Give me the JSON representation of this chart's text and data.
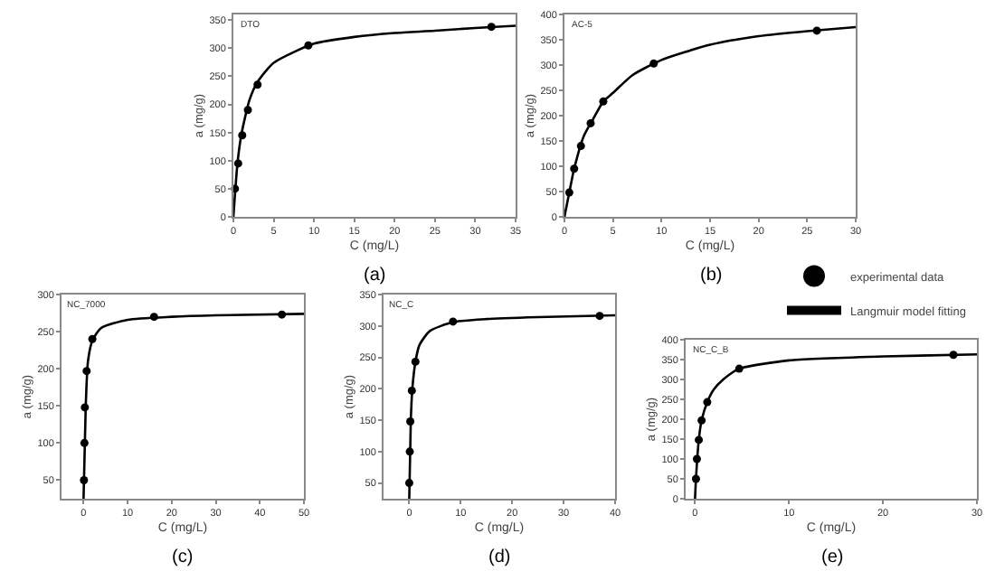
{
  "chart_data": [
    {
      "type": "scatter",
      "xlabel": "C (mg/L)",
      "ylabel": "a (mg/g)",
      "annotations": [
        "DTO",
        "(a)"
      ],
      "xlim": [
        0,
        35
      ],
      "ylim": [
        0,
        360
      ],
      "xticks": [
        0,
        5,
        10,
        15,
        20,
        25,
        30,
        35
      ],
      "yticks": [
        0,
        50,
        100,
        150,
        200,
        250,
        300,
        350
      ],
      "grid": false,
      "series": [
        {
          "marker": "circle",
          "color": "#000000",
          "x": [
            0.2,
            0.6,
            1.1,
            1.8,
            3,
            9.3,
            32
          ],
          "values": [
            50,
            95,
            145,
            190,
            235,
            305,
            338
          ]
        },
        {
          "type": "line",
          "line_style": "solid",
          "color": "#000000",
          "x": [
            0,
            0.5,
            1,
            2,
            3,
            5,
            10,
            15,
            20,
            25,
            30,
            35
          ],
          "values": [
            0,
            94,
            147,
            208,
            240,
            274,
            308,
            320,
            327,
            331,
            336,
            340
          ]
        }
      ]
    },
    {
      "type": "scatter",
      "xlabel": "C (mg/L)",
      "ylabel": "a (mg/g)",
      "annotations": [
        "AC-5",
        "(b)"
      ],
      "xlim": [
        0,
        30
      ],
      "ylim": [
        0,
        400
      ],
      "xticks": [
        0,
        5,
        10,
        15,
        20,
        25,
        30
      ],
      "yticks": [
        0,
        50,
        100,
        150,
        200,
        250,
        300,
        350,
        400
      ],
      "grid": false,
      "series": [
        {
          "marker": "circle",
          "color": "#000000",
          "x": [
            0.5,
            1,
            1.7,
            2.7,
            4,
            9.2,
            26
          ],
          "values": [
            48,
            95,
            140,
            185,
            228,
            303,
            368
          ]
        },
        {
          "type": "line",
          "line_style": "solid",
          "color": "#000000",
          "x": [
            0,
            0.5,
            1,
            2,
            3,
            4,
            5,
            7,
            10,
            15,
            20,
            25,
            30
          ],
          "values": [
            0,
            48,
            95,
            160,
            195,
            228,
            245,
            280,
            310,
            340,
            357,
            367,
            375
          ]
        }
      ]
    },
    {
      "type": "scatter",
      "xlabel": "C (mg/L)",
      "ylabel": "a (mg/g)",
      "annotations": [
        "NC_7000",
        "(c)"
      ],
      "xlim": [
        -5,
        50
      ],
      "ylim": [
        25,
        300
      ],
      "xticks": [
        0,
        10,
        20,
        30,
        40,
        50
      ],
      "yticks": [
        50,
        100,
        150,
        200,
        250,
        300
      ],
      "grid": false,
      "series": [
        {
          "marker": "circle",
          "color": "#000000",
          "x": [
            0.1,
            0.2,
            0.3,
            0.7,
            2,
            16,
            45
          ],
          "values": [
            50,
            100,
            148,
            197,
            240,
            270,
            273
          ]
        },
        {
          "type": "line",
          "line_style": "solid",
          "color": "#000000",
          "x": [
            0,
            0.5,
            1,
            2,
            4,
            10,
            20,
            30,
            50
          ],
          "values": [
            25,
            150,
            210,
            238,
            255,
            266,
            270,
            272,
            274
          ]
        }
      ]
    },
    {
      "type": "scatter",
      "xlabel": "C (mg/L)",
      "ylabel": "a (mg/g)",
      "annotations": [
        "NC_C",
        "(d)"
      ],
      "xlim": [
        -5,
        40
      ],
      "ylim": [
        25,
        350
      ],
      "xticks": [
        0,
        10,
        20,
        30,
        40
      ],
      "yticks": [
        50,
        100,
        150,
        200,
        250,
        300,
        350
      ],
      "grid": false,
      "series": [
        {
          "marker": "circle",
          "color": "#000000",
          "x": [
            0,
            0.1,
            0.2,
            0.5,
            1.2,
            8.5,
            37
          ],
          "values": [
            50,
            100,
            148,
            197,
            243,
            307,
            316
          ]
        },
        {
          "type": "line",
          "line_style": "solid",
          "color": "#000000",
          "x": [
            0,
            0.3,
            0.6,
            1.2,
            2,
            4,
            8.5,
            15,
            25,
            40
          ],
          "values": [
            25,
            150,
            200,
            243,
            270,
            292,
            306,
            311,
            314,
            317
          ]
        }
      ]
    },
    {
      "type": "scatter",
      "xlabel": "C (mg/L)",
      "ylabel": "a (mg/g)",
      "annotations": [
        "NC_C_B",
        "(e)"
      ],
      "xlim": [
        -1,
        30
      ],
      "ylim": [
        0,
        400
      ],
      "xticks": [
        0,
        10,
        20,
        30
      ],
      "yticks": [
        0,
        50,
        100,
        150,
        200,
        250,
        300,
        350,
        400
      ],
      "grid": false,
      "legend": "top right",
      "series": [
        {
          "name": "experimental data",
          "marker": "circle",
          "color": "#000000",
          "x": [
            0.1,
            0.2,
            0.4,
            0.7,
            1.3,
            4.7,
            27.5
          ],
          "values": [
            50,
            100,
            148,
            197,
            243,
            327,
            362
          ]
        },
        {
          "type": "line",
          "name": "Langmuir model fitting",
          "line_style": "solid",
          "color": "#000000",
          "x": [
            0,
            0.1,
            0.4,
            0.7,
            1.3,
            2,
            3,
            4.7,
            10,
            20,
            30
          ],
          "values": [
            0,
            50,
            148,
            197,
            243,
            275,
            300,
            327,
            348,
            358,
            363
          ]
        }
      ]
    }
  ]
}
